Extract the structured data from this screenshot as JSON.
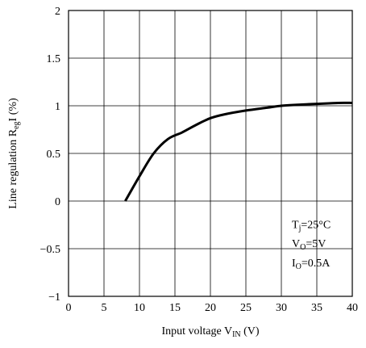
{
  "chart_data": {
    "type": "line",
    "xlabel": {
      "main": "Input voltage V",
      "sub": "IN",
      "unit": " (V)"
    },
    "ylabel": {
      "main": "Line regulation R",
      "sub": "eg",
      "unit": "I (%)"
    },
    "xlim": [
      0,
      40
    ],
    "ylim": [
      -1,
      2
    ],
    "xticks": [
      "0",
      "5",
      "10",
      "15",
      "20",
      "25",
      "30",
      "35",
      "40"
    ],
    "yticks": [
      "2",
      "1.5",
      "1",
      "0.5",
      "0",
      "−0.5",
      "−1"
    ],
    "xtick_values": [
      0,
      5,
      10,
      15,
      20,
      25,
      30,
      35,
      40
    ],
    "ytick_values": [
      2,
      1.5,
      1,
      0.5,
      0,
      -0.5,
      -1
    ],
    "grid": true,
    "series": [
      {
        "x": [
          8,
          10,
          12,
          14,
          16,
          18,
          20,
          22,
          25,
          28,
          30,
          32,
          35,
          38,
          40
        ],
        "y": [
          0.0,
          0.26,
          0.5,
          0.65,
          0.72,
          0.8,
          0.87,
          0.91,
          0.95,
          0.98,
          1.0,
          1.01,
          1.02,
          1.03,
          1.03
        ]
      }
    ],
    "annotations": [
      {
        "main": "T",
        "sub": "j",
        "rest": "=25°C"
      },
      {
        "main": "V",
        "sub": "O",
        "rest": "=5V"
      },
      {
        "main": "I",
        "sub": "O",
        "rest": "=0.5A"
      }
    ]
  }
}
